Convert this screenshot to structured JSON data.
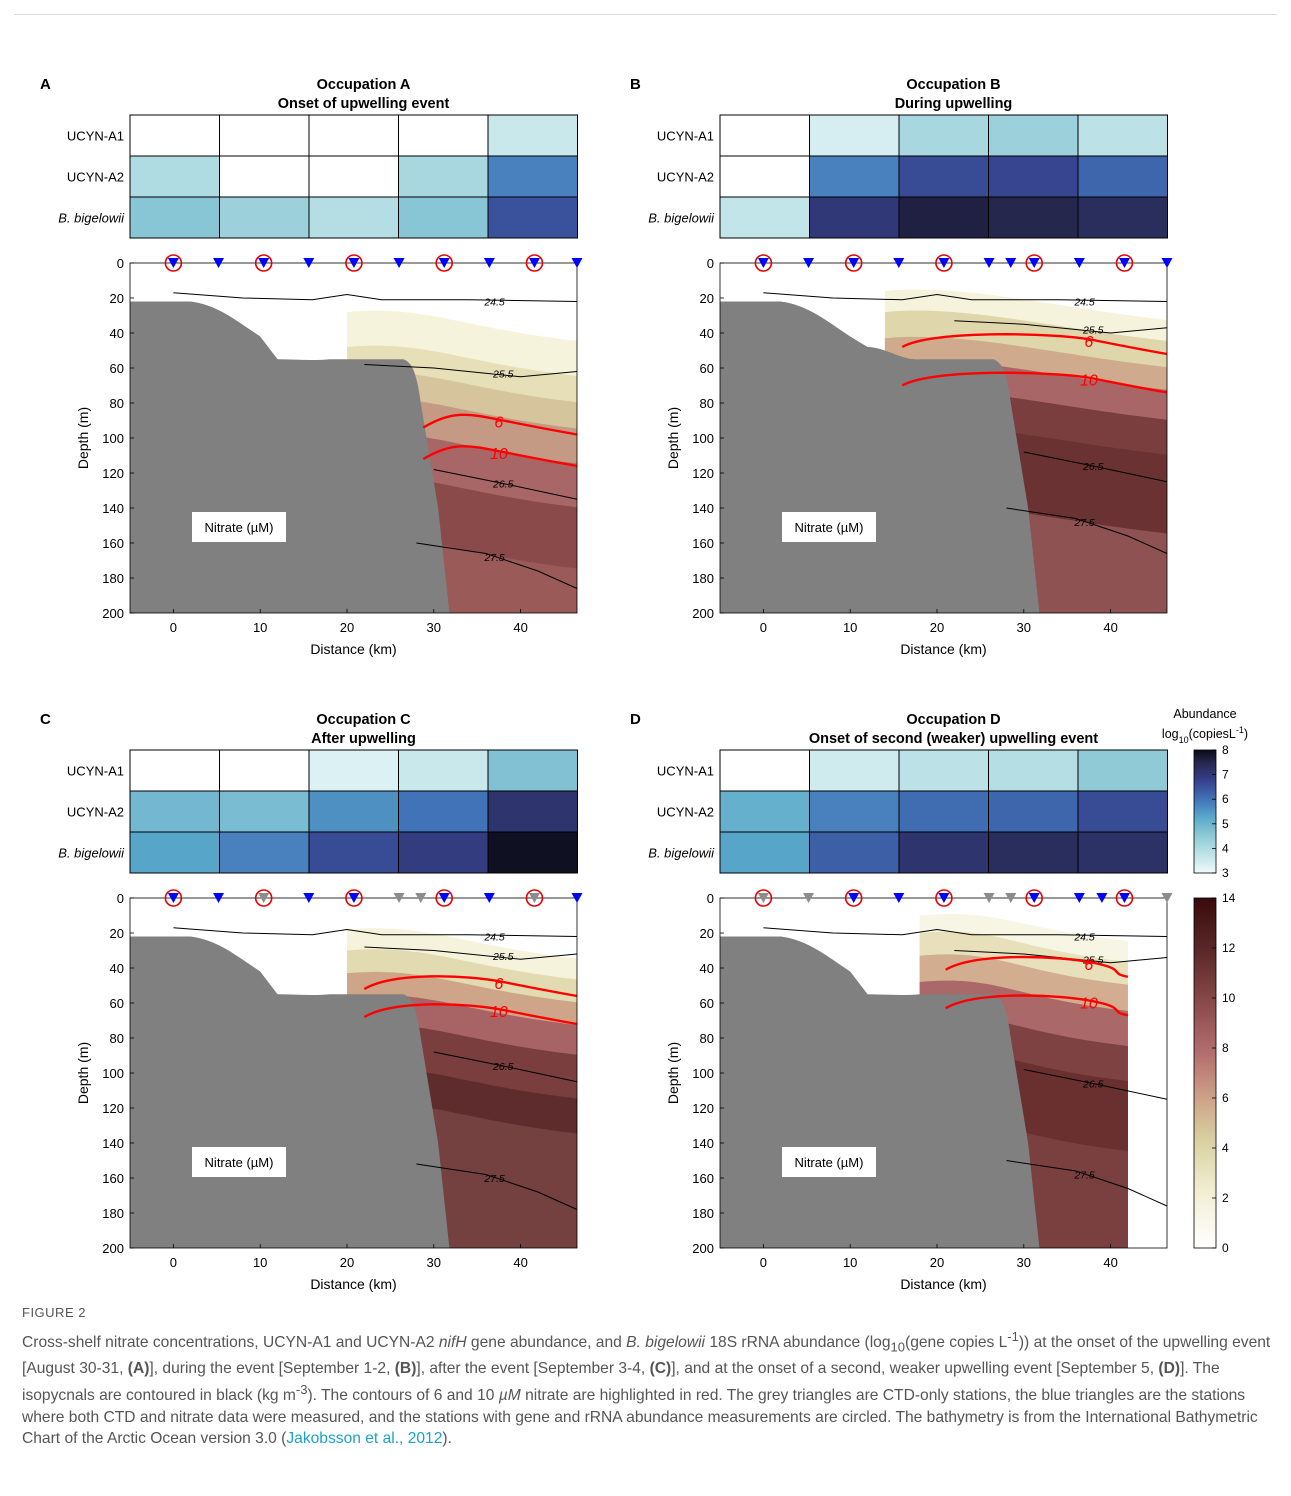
{
  "panels": [
    {
      "letter": "A",
      "title_line1": "Occupation A",
      "title_line2": "Onset of upwelling event",
      "heatmap": [
        [
          0,
          0,
          0,
          0,
          3.6
        ],
        [
          4.0,
          0,
          0,
          4.1,
          5.8
        ],
        [
          4.6,
          4.3,
          3.9,
          4.6,
          6.5
        ]
      ],
      "stations": [
        {
          "x": 0,
          "type": "blue",
          "circled": true
        },
        {
          "x": 5.2,
          "type": "blue",
          "circled": false
        },
        {
          "x": 10.4,
          "type": "blue",
          "circled": true
        },
        {
          "x": 15.6,
          "type": "blue",
          "circled": false
        },
        {
          "x": 20.8,
          "type": "blue",
          "circled": true
        },
        {
          "x": 26,
          "type": "blue",
          "circled": false
        },
        {
          "x": 31.2,
          "type": "blue",
          "circled": true
        },
        {
          "x": 36.4,
          "type": "blue",
          "circled": false
        },
        {
          "x": 41.6,
          "type": "blue",
          "circled": true
        },
        {
          "x": 46.5,
          "type": "blue",
          "circled": false
        }
      ],
      "isopycnal_labels": [
        "24.5",
        "25.5",
        "26.5",
        "27.5"
      ],
      "nitrate_labels": [
        "6",
        "10"
      ],
      "nitrate_box": "Nitrate (µM)"
    },
    {
      "letter": "B",
      "title_line1": "Occupation B",
      "title_line2": "During upwelling",
      "heatmap": [
        [
          0,
          3.4,
          4.1,
          4.3,
          3.8
        ],
        [
          0,
          5.8,
          6.6,
          6.7,
          6.2
        ],
        [
          3.7,
          7.0,
          7.6,
          7.5,
          7.3
        ]
      ],
      "stations": [
        {
          "x": 0,
          "type": "blue",
          "circled": true
        },
        {
          "x": 5.2,
          "type": "blue",
          "circled": false
        },
        {
          "x": 10.4,
          "type": "blue",
          "circled": true
        },
        {
          "x": 15.6,
          "type": "blue",
          "circled": false
        },
        {
          "x": 20.8,
          "type": "blue",
          "circled": true
        },
        {
          "x": 26,
          "type": "blue",
          "circled": false
        },
        {
          "x": 28.5,
          "type": "blue",
          "circled": false
        },
        {
          "x": 31.2,
          "type": "blue",
          "circled": true
        },
        {
          "x": 36.4,
          "type": "blue",
          "circled": false
        },
        {
          "x": 41.6,
          "type": "blue",
          "circled": true
        },
        {
          "x": 46.5,
          "type": "blue",
          "circled": false
        }
      ],
      "isopycnal_labels": [
        "24.5",
        "25.5",
        "26.5",
        "27.5"
      ],
      "nitrate_labels": [
        "6",
        "10"
      ],
      "nitrate_box": "Nitrate (µM)"
    },
    {
      "letter": "C",
      "title_line1": "Occupation C",
      "title_line2": "After upwelling",
      "heatmap": [
        [
          0,
          0,
          3.3,
          3.6,
          4.7
        ],
        [
          4.9,
          4.8,
          5.6,
          6.0,
          7.1
        ],
        [
          5.3,
          5.8,
          6.6,
          6.9,
          7.9
        ]
      ],
      "stations": [
        {
          "x": 0,
          "type": "blue",
          "circled": true
        },
        {
          "x": 5.2,
          "type": "blue",
          "circled": false
        },
        {
          "x": 10.4,
          "type": "grey",
          "circled": true
        },
        {
          "x": 15.6,
          "type": "blue",
          "circled": false
        },
        {
          "x": 20.8,
          "type": "blue",
          "circled": true
        },
        {
          "x": 26,
          "type": "grey",
          "circled": false
        },
        {
          "x": 28.5,
          "type": "grey",
          "circled": false
        },
        {
          "x": 31.2,
          "type": "blue",
          "circled": true
        },
        {
          "x": 36.4,
          "type": "blue",
          "circled": false
        },
        {
          "x": 41.6,
          "type": "grey",
          "circled": true
        },
        {
          "x": 46.5,
          "type": "blue",
          "circled": false
        }
      ],
      "isopycnal_labels": [
        "24.5",
        "25.5",
        "26.5",
        "27.5"
      ],
      "nitrate_labels": [
        "6",
        "10"
      ],
      "nitrate_box": "Nitrate (µM)"
    },
    {
      "letter": "D",
      "title_line1": "Occupation D",
      "title_line2": "Onset of second (weaker) upwelling event",
      "heatmap": [
        [
          0,
          3.5,
          3.8,
          3.9,
          4.5
        ],
        [
          5.1,
          5.8,
          6.1,
          6.2,
          6.6
        ],
        [
          5.3,
          6.3,
          7.1,
          7.3,
          7.2
        ]
      ],
      "stations": [
        {
          "x": 0,
          "type": "grey",
          "circled": true
        },
        {
          "x": 5.2,
          "type": "grey",
          "circled": false
        },
        {
          "x": 10.4,
          "type": "blue",
          "circled": true
        },
        {
          "x": 15.6,
          "type": "blue",
          "circled": false
        },
        {
          "x": 20.8,
          "type": "blue",
          "circled": true
        },
        {
          "x": 26,
          "type": "grey",
          "circled": false
        },
        {
          "x": 28.5,
          "type": "grey",
          "circled": false
        },
        {
          "x": 31.2,
          "type": "blue",
          "circled": true
        },
        {
          "x": 36.4,
          "type": "blue",
          "circled": false
        },
        {
          "x": 39,
          "type": "blue",
          "circled": false
        },
        {
          "x": 41.6,
          "type": "blue",
          "circled": true
        },
        {
          "x": 46.5,
          "type": "grey",
          "circled": false
        }
      ],
      "isopycnal_labels": [
        "24.5",
        "25.5",
        "26.5",
        "27.5"
      ],
      "nitrate_labels": [
        "6",
        "10"
      ],
      "nitrate_box": "Nitrate (µM)"
    }
  ],
  "row_labels": [
    "UCYN-A1",
    "UCYN-A2",
    "B. bigelowii"
  ],
  "axes": {
    "xlabel": "Distance (km)",
    "ylabel": "Depth (m)",
    "xticks": [
      "0",
      "10",
      "20",
      "30",
      "40"
    ],
    "yticks": [
      "0",
      "20",
      "40",
      "60",
      "80",
      "100",
      "120",
      "140",
      "160",
      "180",
      "200"
    ],
    "xlim": [
      -5,
      46.5
    ],
    "ylim": [
      0,
      200
    ]
  },
  "abundance_colorbar": {
    "title_line1": "Abundance",
    "title_line2": "log",
    "title_sub": "10",
    "title_tail": "(copiesL",
    "title_sup": "-1",
    "title_end": ")",
    "ticks": [
      "3",
      "4",
      "5",
      "6",
      "7",
      "8"
    ],
    "range": [
      3,
      8
    ]
  },
  "nitrate_colorbar": {
    "ticks": [
      "0",
      "2",
      "4",
      "6",
      "8",
      "10",
      "12",
      "14"
    ],
    "range": [
      0,
      14
    ]
  },
  "colors": {
    "bathymetry": "#808080",
    "nitrate_contour": "#ff0000",
    "isopycnal": "#000000",
    "blue_station": "#0000ff",
    "grey_station": "#8c8c8c",
    "circle": "#e60000"
  },
  "caption": {
    "label": "FIGURE 2",
    "t1": "Cross-shelf nitrate concentrations, UCYN-A1 and UCYN-A2 ",
    "t2": "nifH",
    "t3": " gene abundance, and ",
    "t4": "B. bigelowii",
    "t5": " 18S rRNA abundance (log",
    "t6": "10",
    "t7": "(gene copies L",
    "t8": "-1",
    "t9": ")) at the onset of the upwelling event [August 30-31, ",
    "t10": "(A)",
    "t11": "], during the event [September 1-2, ",
    "t12": "(B)",
    "t13": "], after the event [September 3-4, ",
    "t14": "(C)",
    "t15": "], and at the onset of a second, weaker upwelling event [September 5, ",
    "t16": "(D)",
    "t17": "]. The isopycnals are contoured in black (kg m",
    "t18": "-3",
    "t19": "). The contours of 6 and 10 ",
    "t20": "µM",
    "t21": " nitrate are highlighted in red. The grey triangles are CTD-only stations, the blue triangles are the stations where both CTD and nitrate data were measured, and the stations with gene and rRNA abundance measurements are circled. The bathymetry is from the International Bathymetric Chart of the Arctic Ocean version 3.0 (",
    "t22": "Jakobsson et al., 2012",
    "t23": ")."
  }
}
